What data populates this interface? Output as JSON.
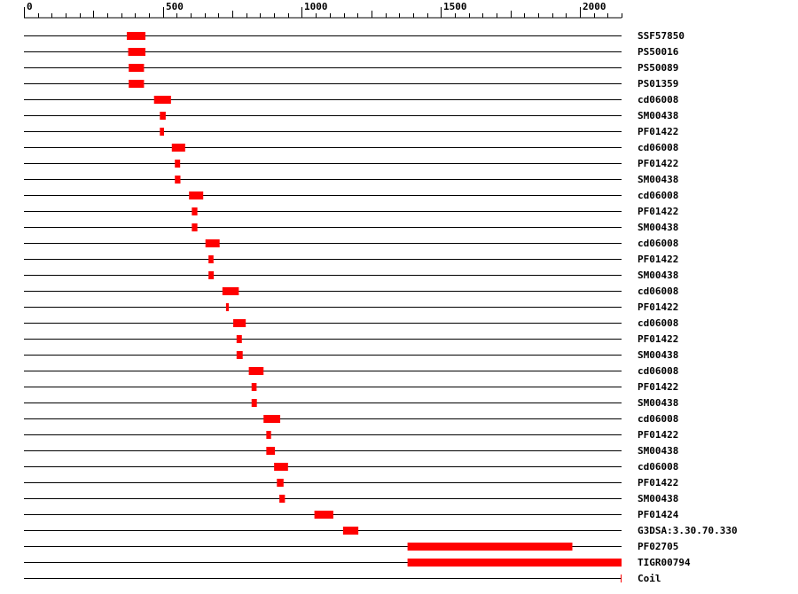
{
  "chart_data": {
    "type": "domain-track",
    "xlim": [
      0,
      2150
    ],
    "axis": {
      "labels": [
        {
          "value": 0,
          "label": "0"
        },
        {
          "value": 500,
          "label": "500"
        },
        {
          "value": 1000,
          "label": "1000"
        },
        {
          "value": 1500,
          "label": "1500"
        },
        {
          "value": 2000,
          "label": "2000"
        }
      ],
      "minor_step": 50,
      "major_step": 250
    },
    "colors": {
      "domain": "#ff0000",
      "line": "#000000"
    },
    "rows": [
      {
        "label": "SSF57850",
        "start": 370,
        "end": 437
      },
      {
        "label": "PS50016",
        "start": 375,
        "end": 437
      },
      {
        "label": "PS50089",
        "start": 377,
        "end": 432
      },
      {
        "label": "PS01359",
        "start": 377,
        "end": 432
      },
      {
        "label": "cd06008",
        "start": 468,
        "end": 529
      },
      {
        "label": "SM00438",
        "start": 489,
        "end": 510
      },
      {
        "label": "PF01422",
        "start": 489,
        "end": 504
      },
      {
        "label": "cd06008",
        "start": 532,
        "end": 580
      },
      {
        "label": "PF01422",
        "start": 543,
        "end": 562
      },
      {
        "label": "SM00438",
        "start": 543,
        "end": 563
      },
      {
        "label": "cd06008",
        "start": 594,
        "end": 645
      },
      {
        "label": "PF01422",
        "start": 604,
        "end": 624
      },
      {
        "label": "SM00438",
        "start": 604,
        "end": 624
      },
      {
        "label": "cd06008",
        "start": 653,
        "end": 704
      },
      {
        "label": "PF01422",
        "start": 664,
        "end": 682
      },
      {
        "label": "SM00438",
        "start": 664,
        "end": 683
      },
      {
        "label": "cd06008",
        "start": 714,
        "end": 773
      },
      {
        "label": "PF01422",
        "start": 727,
        "end": 737
      },
      {
        "label": "cd06008",
        "start": 753,
        "end": 798
      },
      {
        "label": "PF01422",
        "start": 765,
        "end": 784
      },
      {
        "label": "SM00438",
        "start": 765,
        "end": 787
      },
      {
        "label": "cd06008",
        "start": 809,
        "end": 862
      },
      {
        "label": "PF01422",
        "start": 819,
        "end": 837
      },
      {
        "label": "SM00438",
        "start": 819,
        "end": 838
      },
      {
        "label": "cd06008",
        "start": 862,
        "end": 922
      },
      {
        "label": "PF01422",
        "start": 872,
        "end": 889
      },
      {
        "label": "SM00438",
        "start": 872,
        "end": 903
      },
      {
        "label": "cd06008",
        "start": 900,
        "end": 950
      },
      {
        "label": "PF01422",
        "start": 910,
        "end": 934
      },
      {
        "label": "SM00438",
        "start": 919,
        "end": 939
      },
      {
        "label": "PF01424",
        "start": 1045,
        "end": 1113
      },
      {
        "label": "G3DSA:3.30.70.330",
        "start": 1148,
        "end": 1203
      },
      {
        "label": "PF02705",
        "start": 1380,
        "end": 1973
      },
      {
        "label": "TIGR00794",
        "start": 1380,
        "end": 2150
      },
      {
        "label": "Coil",
        "start": 2147,
        "end": 2150
      }
    ]
  }
}
